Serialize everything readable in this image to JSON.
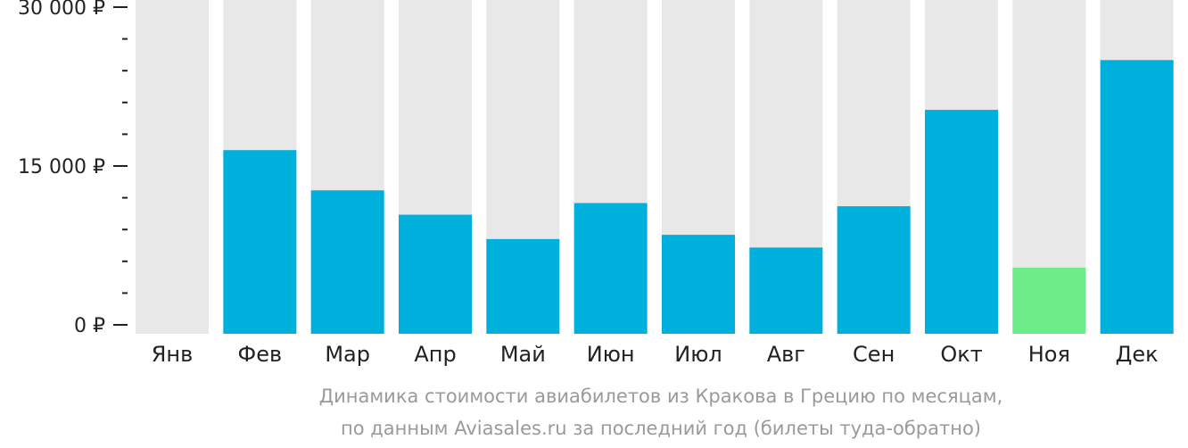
{
  "chart_data": {
    "type": "bar",
    "categories": [
      "Янв",
      "Фев",
      "Мар",
      "Апр",
      "Май",
      "Июн",
      "Июл",
      "Авг",
      "Сен",
      "Окт",
      "Ноя",
      "Дек"
    ],
    "values": [
      0,
      16500,
      12700,
      10400,
      8100,
      11500,
      8500,
      7300,
      11200,
      20300,
      5400,
      25000
    ],
    "ylim": [
      0,
      30000
    ],
    "y_ticks": [
      {
        "value": 0,
        "label": "0 ₽"
      },
      {
        "value": 15000,
        "label": "15 000 ₽"
      },
      {
        "value": 30000,
        "label": "30 000 ₽"
      }
    ],
    "y_minor_step": 3000,
    "highlight_index": 10,
    "colors": {
      "bar": "#00b0dc",
      "highlight": "#6ced88",
      "background_bar": "#e8e8e8",
      "axis": "#222222"
    }
  },
  "caption": {
    "line1": "Динамика стоимости авиабилетов из Кракова в Грецию по месяцам,",
    "line2": "по данным Aviasales.ru за последний год (билеты туда-обратно)"
  }
}
